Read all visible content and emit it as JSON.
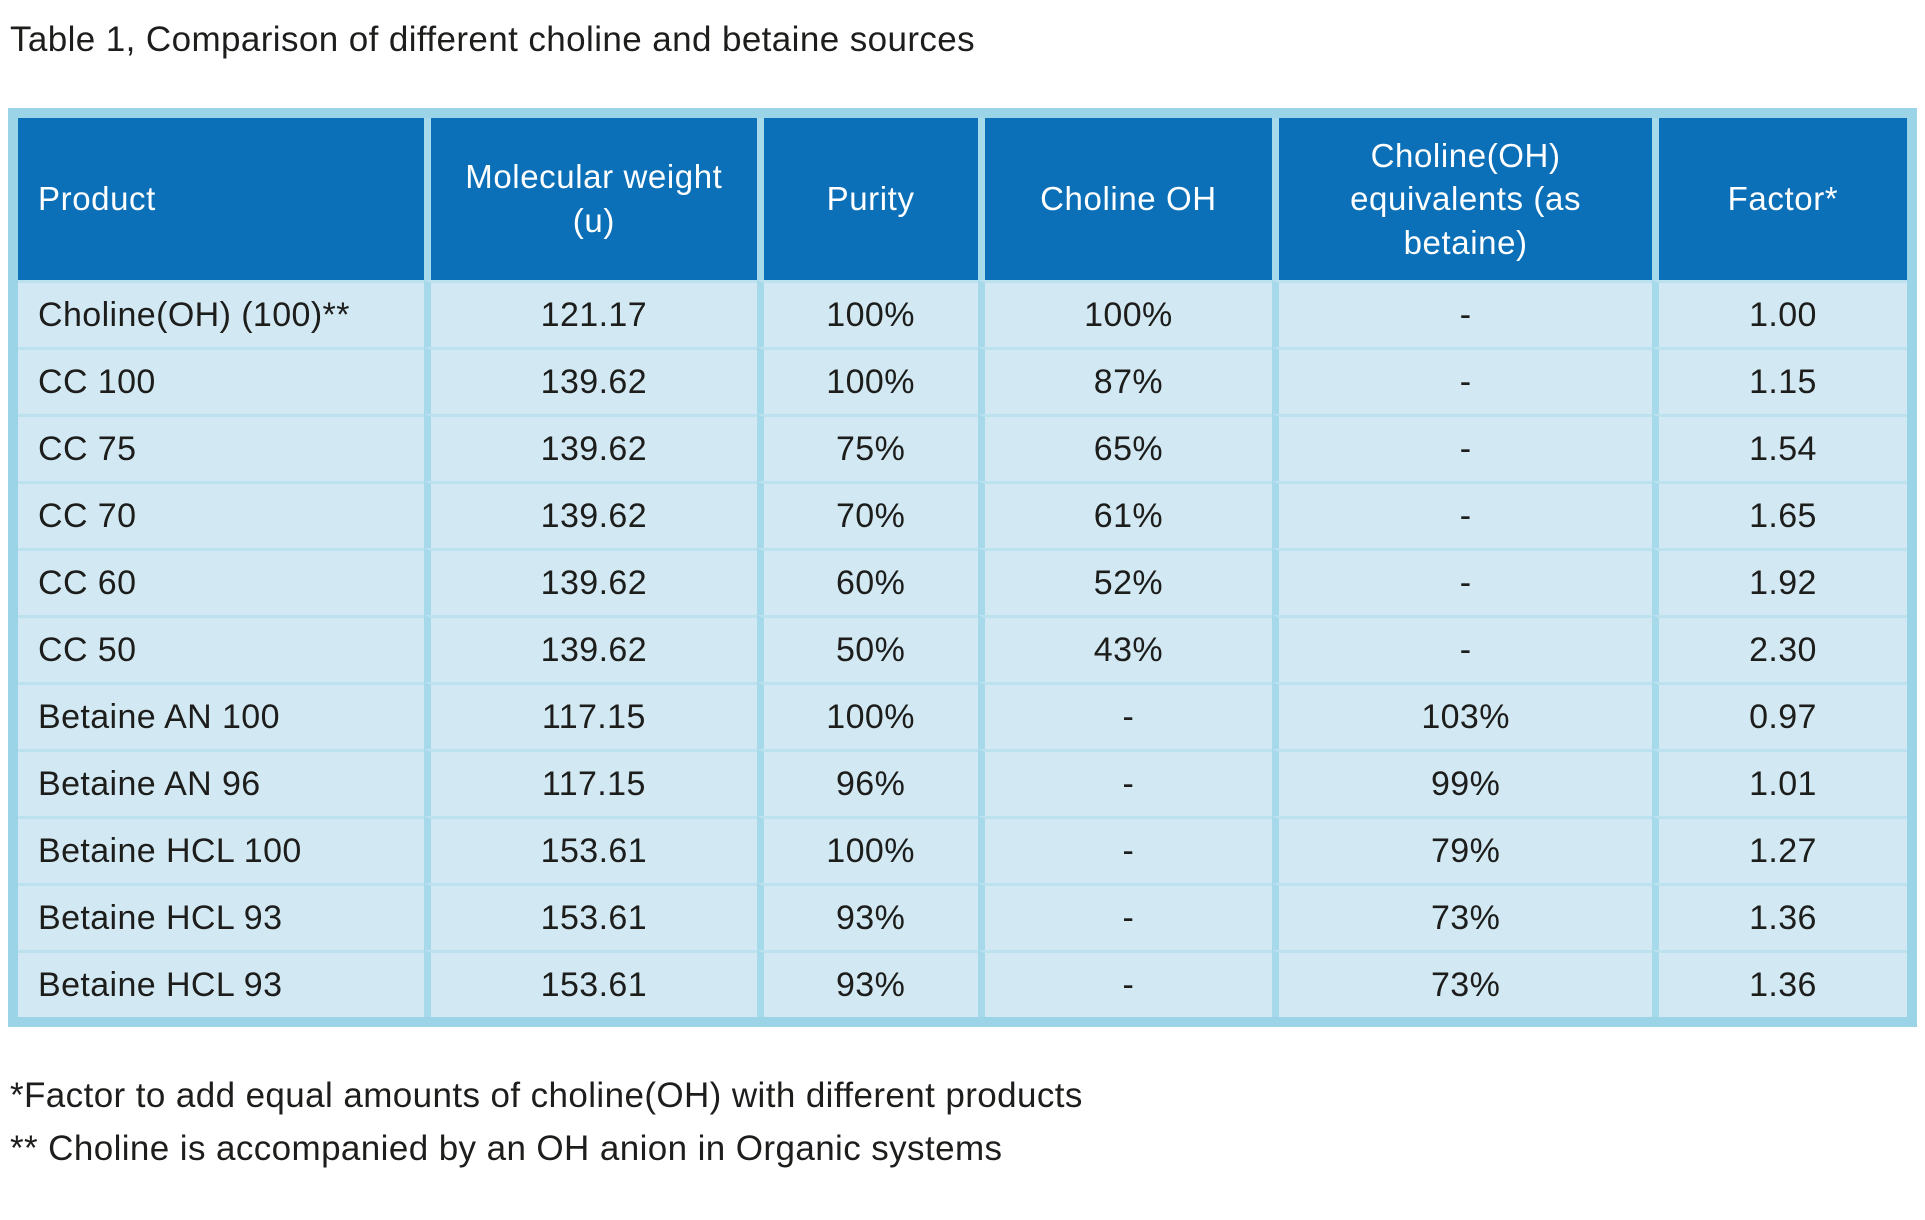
{
  "title": "Table 1, Comparison of different choline and betaine sources",
  "table": {
    "columns": [
      "Product",
      "Molecular weight (u)",
      "Purity",
      "Choline OH",
      "Choline(OH) equivalents (as betaine)",
      "Factor*"
    ],
    "rows": [
      [
        "Choline(OH) (100)**",
        "121.17",
        "100%",
        "100%",
        "-",
        "1.00"
      ],
      [
        "CC 100",
        "139.62",
        "100%",
        "87%",
        "-",
        "1.15"
      ],
      [
        "CC 75",
        "139.62",
        "75%",
        "65%",
        "-",
        "1.54"
      ],
      [
        "CC 70",
        "139.62",
        "70%",
        "61%",
        "-",
        "1.65"
      ],
      [
        "CC 60",
        "139.62",
        "60%",
        "52%",
        "-",
        "1.92"
      ],
      [
        "CC 50",
        "139.62",
        "50%",
        "43%",
        "-",
        "2.30"
      ],
      [
        "Betaine AN 100",
        "117.15",
        "100%",
        "-",
        "103%",
        "0.97"
      ],
      [
        "Betaine AN 96",
        "117.15",
        "96%",
        "-",
        "99%",
        "1.01"
      ],
      [
        "Betaine HCL 100",
        "153.61",
        "100%",
        "-",
        "79%",
        "1.27"
      ],
      [
        "Betaine HCL 93",
        "153.61",
        "93%",
        "-",
        "73%",
        "1.36"
      ],
      [
        "Betaine HCL 93",
        "153.61",
        "93%",
        "-",
        "73%",
        "1.36"
      ]
    ]
  },
  "footnotes": [
    "*Factor to add equal amounts of choline(OH) with different products",
    "** Choline is accompanied by an OH anion in Organic systems"
  ],
  "colors": {
    "header_bg": "#0b70b8",
    "header_text": "#ffffff",
    "row_bg": "#d2e9f4",
    "grid_v": "#a6daeb",
    "grid_h": "#bce2f0",
    "outer_border": "#9cd4e7",
    "text": "#1d1d1b",
    "page_bg": "#ffffff"
  }
}
